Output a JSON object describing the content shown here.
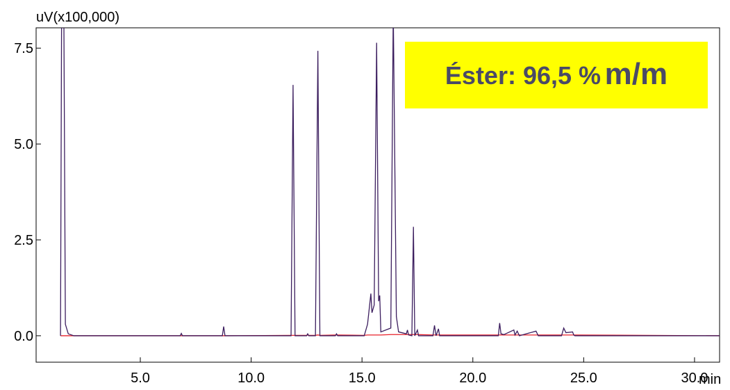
{
  "chart_data": {
    "type": "line",
    "y_label": "uV(x100,000)",
    "x_label": "min",
    "annotation": {
      "text": "Éster: 96,5 %",
      "unit": "m/m"
    },
    "xlim": [
      0.3,
      31.13
    ],
    "ylim": [
      -0.69,
      8.03
    ],
    "xticks": [
      {
        "value": 5,
        "label": "5.0"
      },
      {
        "value": 10,
        "label": "10.0"
      },
      {
        "value": 15,
        "label": "15.0"
      },
      {
        "value": 20,
        "label": "20.0"
      },
      {
        "value": 25,
        "label": "25.0"
      },
      {
        "value": 30,
        "label": "30.0"
      }
    ],
    "yticks": [
      {
        "value": 0,
        "label": "0.0"
      },
      {
        "value": 2.5,
        "label": "2.5"
      },
      {
        "value": 5,
        "label": "5.0"
      },
      {
        "value": 7.5,
        "label": "7.5"
      }
    ],
    "x": [
      1.4,
      1.45,
      1.55,
      1.62,
      1.75,
      2.0,
      6.8,
      6.85,
      6.9,
      8.7,
      8.76,
      8.82,
      11.8,
      11.89,
      11.98,
      12.5,
      12.55,
      12.6,
      12.9,
      13.01,
      13.1,
      13.8,
      13.85,
      13.9,
      15.1,
      15.25,
      15.4,
      15.45,
      15.55,
      15.66,
      15.75,
      15.8,
      15.85,
      16.3,
      16.41,
      16.55,
      16.65,
      17.0,
      17.05,
      17.1,
      17.25,
      17.32,
      17.38,
      17.5,
      17.55,
      18.2,
      18.27,
      18.34,
      18.45,
      18.5,
      21.15,
      21.21,
      21.27,
      21.4,
      21.85,
      21.9,
      22.0,
      22.1,
      22.85,
      22.95,
      24.0,
      24.1,
      24.2,
      24.5,
      24.55,
      24.6,
      31.13
    ],
    "series": [
      {
        "color": "#e8202a",
        "values": [
          0,
          0,
          0,
          0,
          0,
          0,
          0,
          0,
          0,
          0,
          0,
          0,
          0.01,
          0.01,
          0.01,
          0.01,
          0.02,
          0.01,
          0.01,
          0.02,
          0.01,
          0.02,
          0.02,
          0.02,
          0.01,
          0.02,
          0.02,
          0.02,
          0.02,
          0.02,
          0.02,
          0.02,
          0.02,
          0.03,
          0.03,
          0.03,
          0.03,
          0.03,
          0.03,
          0.03,
          0.03,
          0.03,
          0.03,
          0.03,
          0.03,
          0.02,
          0.02,
          0.02,
          0.02,
          0.02,
          0.02,
          0.02,
          0.02,
          0.02,
          0.02,
          0.02,
          0.02,
          0.02,
          0.02,
          0.02,
          0.02,
          0.02,
          0.02,
          0.02,
          0.02,
          0.02,
          0
        ]
      },
      {
        "color": "#3b1d5e",
        "values": [
          0,
          8.5,
          8.5,
          0.3,
          0.05,
          0,
          0,
          0.06,
          0,
          0,
          0.24,
          0,
          0,
          6.54,
          0,
          0,
          0.05,
          0,
          0,
          7.43,
          0,
          0,
          0.05,
          0,
          0,
          0.3,
          1.1,
          0.6,
          0.8,
          7.64,
          0.9,
          1.05,
          0.1,
          0.2,
          8.5,
          0.5,
          0.1,
          0.05,
          0.15,
          0.02,
          0,
          2.84,
          0,
          0.15,
          0,
          0,
          0.27,
          0,
          0.18,
          0,
          0,
          0.33,
          0.05,
          0.03,
          0.15,
          0.02,
          0.12,
          0,
          0.12,
          0,
          0,
          0.2,
          0.08,
          0.1,
          0.02,
          0,
          0
        ]
      }
    ]
  }
}
